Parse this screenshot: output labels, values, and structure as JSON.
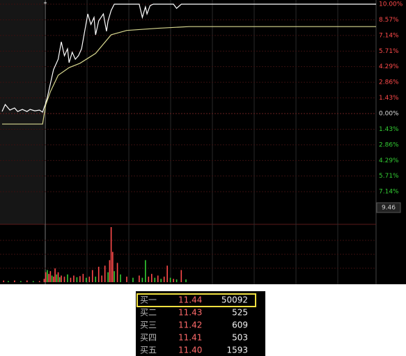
{
  "chart_data": [
    {
      "type": "intraday",
      "marker": "*",
      "xlim": [
        0,
        240
      ],
      "ylim": [
        -10,
        10
      ],
      "yticks": [
        {
          "value": 10,
          "label": "10.00%"
        },
        {
          "value": 8.57,
          "label": "8.57%"
        },
        {
          "value": 7.14,
          "label": "7.14%"
        },
        {
          "value": 5.71,
          "label": "5.71%"
        },
        {
          "value": 4.29,
          "label": "4.29%"
        },
        {
          "value": 2.86,
          "label": "2.86%"
        },
        {
          "value": 1.43,
          "label": "1.43%"
        },
        {
          "value": 0,
          "label": "0.00%"
        },
        {
          "value": -1.43,
          "label": "1.43%"
        },
        {
          "value": -2.86,
          "label": "2.86%"
        },
        {
          "value": -4.29,
          "label": "4.29%"
        },
        {
          "value": -5.71,
          "label": "5.71%"
        },
        {
          "value": -7.14,
          "label": "7.14%"
        }
      ],
      "up_color": "#ff4a4a",
      "down_color": "#33cc33",
      "zero_color": "#dddddd",
      "price_tag": {
        "value": -8.6,
        "label": "9.46"
      },
      "grid": true,
      "series": [
        {
          "color": "#ffffff",
          "x": [
            0,
            2,
            5,
            8,
            10,
            13,
            16,
            18,
            21,
            24,
            26,
            28,
            29,
            31,
            33,
            34,
            36,
            38,
            40,
            42,
            43,
            45,
            47,
            49,
            51,
            53,
            55,
            57,
            59,
            60,
            62,
            65,
            67,
            68,
            70,
            72,
            88,
            90,
            92,
            93,
            95,
            97,
            110,
            112,
            115,
            240
          ],
          "values": [
            0.19,
            0.83,
            0.32,
            0.51,
            0.19,
            0.38,
            0.19,
            0.38,
            0.25,
            0.32,
            0.13,
            0.96,
            1.46,
            2.74,
            4.01,
            4.33,
            4.97,
            6.56,
            5.29,
            5.92,
            4.65,
            5.61,
            4.97,
            5.29,
            5.92,
            7.52,
            9.11,
            8.15,
            8.79,
            7.2,
            8.47,
            9.11,
            7.52,
            8.47,
            9.43,
            10,
            10,
            8.79,
            9.75,
            9.11,
            9.87,
            10,
            10,
            9.62,
            10,
            10
          ]
        },
        {
          "color": "#d8d890",
          "x": [
            0,
            26,
            28,
            31,
            36,
            43,
            50,
            60,
            70,
            80,
            100,
            120,
            240
          ],
          "values": [
            -0.96,
            -0.96,
            0.8,
            2.0,
            3.5,
            4.2,
            4.6,
            5.5,
            7.2,
            7.6,
            7.8,
            7.95,
            7.95
          ]
        }
      ]
    },
    {
      "type": "volume",
      "x": [
        1,
        4,
        8,
        12,
        16,
        20,
        24,
        27,
        28,
        29,
        30,
        31,
        32,
        33,
        34,
        35,
        36,
        37,
        38,
        40,
        42,
        44,
        46,
        48,
        50,
        52,
        54,
        56,
        58,
        60,
        62,
        64,
        66,
        68,
        69,
        70,
        71,
        72,
        74,
        76,
        80,
        84,
        88,
        90,
        92,
        94,
        96,
        98,
        100,
        102,
        104,
        106,
        108,
        110,
        112,
        115,
        118
      ],
      "values": [
        3,
        2,
        3,
        2,
        3,
        2,
        2,
        6,
        18,
        22,
        15,
        20,
        12,
        10,
        25,
        14,
        18,
        9,
        12,
        10,
        14,
        8,
        12,
        9,
        11,
        15,
        8,
        10,
        22,
        10,
        28,
        12,
        30,
        18,
        40,
        100,
        55,
        20,
        35,
        14,
        10,
        8,
        12,
        8,
        40,
        10,
        15,
        8,
        12,
        6,
        10,
        30,
        8,
        6,
        5,
        22,
        5
      ],
      "colors": [
        "#ff4a4a",
        "#33cc33",
        "#ff4a4a",
        "#33cc33",
        "#ff4a4a",
        "#33cc33",
        "#ff4a4a",
        "#ff4a4a",
        "#ff4a4a",
        "#33cc33",
        "#ff4a4a",
        "#ff4a4a",
        "#33cc33",
        "#ff4a4a",
        "#ff4a4a",
        "#33cc33",
        "#ff4a4a",
        "#33cc33",
        "#ff4a4a",
        "#ff4a4a",
        "#33cc33",
        "#ff4a4a",
        "#ff4a4a",
        "#33cc33",
        "#ff4a4a",
        "#ff4a4a",
        "#33cc33",
        "#ff4a4a",
        "#ff4a4a",
        "#33cc33",
        "#ff4a4a",
        "#ff4a4a",
        "#ff4a4a",
        "#33cc33",
        "#ff4a4a",
        "#ff4a4a",
        "#ff4a4a",
        "#33cc33",
        "#ff4a4a",
        "#33cc33",
        "#ff4a4a",
        "#33cc33",
        "#ff4a4a",
        "#33cc33",
        "#33cc33",
        "#ff4a4a",
        "#ff4a4a",
        "#33cc33",
        "#ff4a4a",
        "#33cc33",
        "#ff4a4a",
        "#ff4a4a",
        "#33cc33",
        "#ff4a4a",
        "#33cc33",
        "#ff4a4a",
        "#33cc33"
      ]
    }
  ],
  "order_book": {
    "rows": [
      [
        "买一",
        "11.44",
        "50092"
      ],
      [
        "买二",
        "11.43",
        "525"
      ],
      [
        "买三",
        "11.42",
        "609"
      ],
      [
        "买四",
        "11.41",
        "503"
      ],
      [
        "买五",
        "11.40",
        "1593"
      ]
    ],
    "highlight": 0
  }
}
